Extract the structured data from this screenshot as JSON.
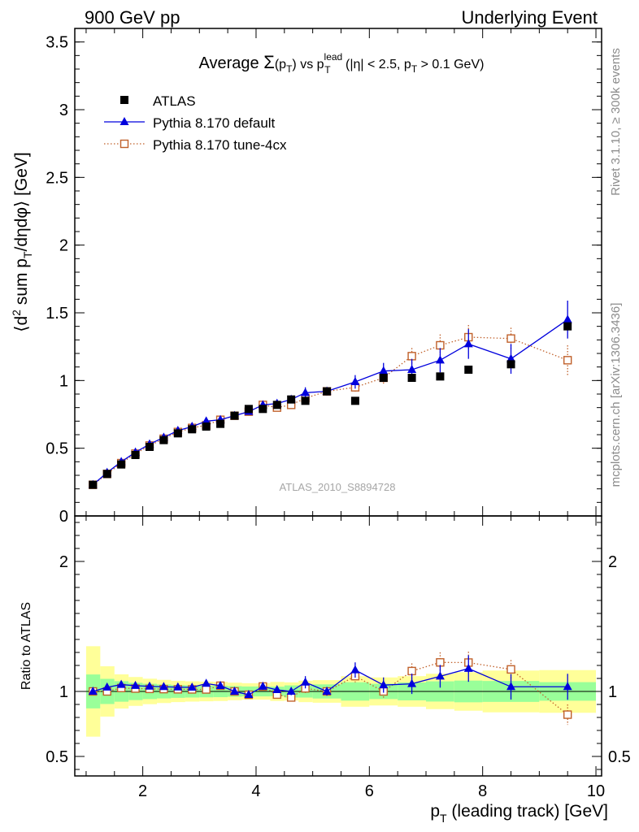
{
  "header": {
    "left": "900 GeV pp",
    "right": "Underlying Event"
  },
  "side_labels": {
    "rivet": "Rivet 3.1.10, ≥ 300k events",
    "mcplots": "mcplots.cern.ch [arXiv:1306.3436]"
  },
  "chart_data": {
    "type": "scatter",
    "title": "Average Σ(pT) vs pT^lead (|η| < 2.5, pT > 0.1 GeV)",
    "analysis_tag": "ATLAS_2010_S8894728",
    "xlabel": "pT (leading track) [GeV]",
    "ylabel_main": "⟨d² sum pT/dηdφ⟩ [GeV]",
    "ylabel_ratio": "Ratio to ATLAS",
    "xlim": [
      0.8,
      10.1
    ],
    "ylim_main": [
      0,
      3.6
    ],
    "ylim_ratio": [
      0.35,
      2.35
    ],
    "x_ticks": [
      2,
      4,
      6,
      8,
      10
    ],
    "y_ticks_main": [
      0,
      0.5,
      1,
      1.5,
      2,
      2.5,
      3,
      3.5
    ],
    "y_ticks_main_labels": [
      "0",
      "0.5",
      "1",
      "1.5",
      "2",
      "2.5",
      "3",
      "3.5"
    ],
    "y_ticks_ratio": [
      0.5,
      1,
      2
    ],
    "y_ticks_ratio_labels": [
      "0.5",
      "1",
      "2"
    ],
    "legend_position": "top-left",
    "colors": {
      "atlas": "#000000",
      "default": "#0000dd",
      "tune": "#c0602a",
      "band_inner": "#99ff99",
      "band_outer": "#ffff99"
    },
    "x": [
      1.12,
      1.37,
      1.62,
      1.87,
      2.12,
      2.37,
      2.62,
      2.87,
      3.12,
      3.37,
      3.62,
      3.87,
      4.12,
      4.37,
      4.62,
      4.87,
      5.25,
      5.75,
      6.25,
      6.75,
      7.25,
      7.75,
      8.5,
      9.5
    ],
    "bin_edges": [
      1.0,
      1.25,
      1.5,
      1.75,
      2.0,
      2.25,
      2.5,
      2.75,
      3.0,
      3.25,
      3.5,
      3.75,
      4.0,
      4.25,
      4.5,
      4.75,
      5.0,
      5.5,
      6.0,
      6.5,
      7.0,
      7.5,
      8.0,
      9.0,
      10.0
    ],
    "series": [
      {
        "name": "ATLAS",
        "style": "filled-square",
        "values": [
          0.23,
          0.31,
          0.38,
          0.45,
          0.51,
          0.56,
          0.61,
          0.64,
          0.66,
          0.68,
          0.74,
          0.79,
          0.79,
          0.82,
          0.86,
          0.85,
          0.92,
          0.85,
          1.02,
          1.02,
          1.03,
          1.08,
          1.12,
          1.4
        ],
        "band_inner": [
          0.03,
          0.03,
          0.03,
          0.03,
          0.03,
          0.03,
          0.03,
          0.03,
          0.03,
          0.03,
          0.03,
          0.03,
          0.03,
          0.03,
          0.04,
          0.04,
          0.05,
          0.06,
          0.06,
          0.07,
          0.08,
          0.09,
          0.09,
          0.1
        ],
        "band_outer": [
          0.08,
          0.06,
          0.05,
          0.05,
          0.05,
          0.05,
          0.05,
          0.05,
          0.05,
          0.05,
          0.05,
          0.05,
          0.05,
          0.06,
          0.06,
          0.07,
          0.08,
          0.1,
          0.11,
          0.12,
          0.14,
          0.16,
          0.18,
          0.23
        ]
      },
      {
        "name": "Pythia 8.170 default",
        "style": "triangle-line",
        "values": [
          0.23,
          0.32,
          0.4,
          0.47,
          0.53,
          0.58,
          0.63,
          0.66,
          0.7,
          0.71,
          0.74,
          0.77,
          0.82,
          0.83,
          0.86,
          0.91,
          0.92,
          0.99,
          1.07,
          1.08,
          1.15,
          1.27,
          1.16,
          1.45
        ],
        "errors": [
          0.005,
          0.005,
          0.005,
          0.006,
          0.006,
          0.006,
          0.008,
          0.008,
          0.01,
          0.01,
          0.012,
          0.015,
          0.02,
          0.02,
          0.025,
          0.04,
          0.03,
          0.05,
          0.06,
          0.08,
          0.09,
          0.11,
          0.11,
          0.14
        ]
      },
      {
        "name": "Pythia 8.170 tune-4cx",
        "style": "open-square-dotted",
        "values": [
          0.23,
          0.31,
          0.39,
          0.46,
          0.52,
          0.57,
          0.62,
          0.65,
          0.67,
          0.71,
          0.74,
          0.77,
          0.82,
          0.8,
          0.82,
          0.87,
          0.92,
          0.95,
          1.02,
          1.18,
          1.26,
          1.32,
          1.31,
          1.15
        ],
        "errors": [
          0.005,
          0.005,
          0.005,
          0.006,
          0.006,
          0.006,
          0.008,
          0.008,
          0.01,
          0.01,
          0.012,
          0.015,
          0.02,
          0.02,
          0.025,
          0.03,
          0.03,
          0.04,
          0.05,
          0.06,
          0.08,
          0.09,
          0.08,
          0.11
        ]
      }
    ]
  }
}
